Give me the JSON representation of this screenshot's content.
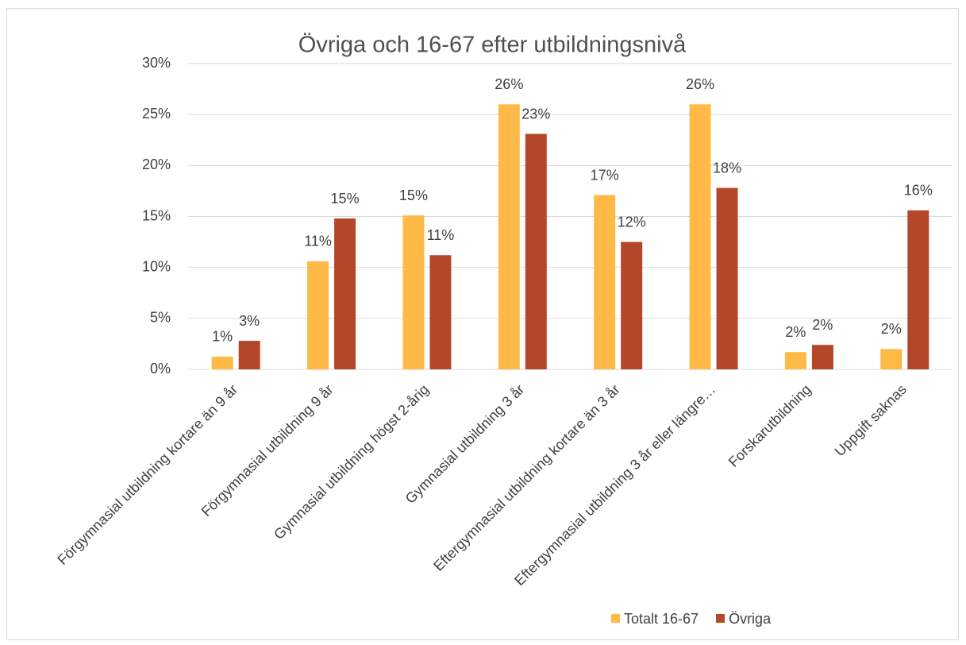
{
  "chart_data": {
    "type": "bar",
    "title": "Övriga och 16-67 efter utbildningsnivå",
    "categories": [
      "Förgymnasial utbildning kortare än 9 år",
      "Förgymnasial utbildning 9 år",
      "Gymnasial utbildning högst 2-årig",
      "Gymnasial utbildning 3 år",
      "Eftergymnasial utbildning kortare än 3 år",
      "Eftergymnasial utbildning 3 år eller längre…",
      "Forskarutbildning",
      "Uppgift saknas"
    ],
    "series": [
      {
        "name": "Totalt 16-67",
        "color": "#ffb946",
        "values": [
          1.25,
          10.6,
          15.1,
          26.0,
          17.1,
          26.0,
          1.7,
          2.0
        ],
        "value_labels": [
          "1%",
          "11%",
          "15%",
          "26%",
          "17%",
          "26%",
          "2%",
          "2%"
        ]
      },
      {
        "name": "Övriga",
        "color": "#b4472a",
        "values": [
          2.8,
          14.8,
          11.2,
          23.1,
          12.5,
          17.8,
          2.4,
          15.6
        ],
        "value_labels": [
          "3%",
          "15%",
          "11%",
          "23%",
          "12%",
          "18%",
          "2%",
          "16%"
        ]
      }
    ],
    "ylim": [
      0,
      30
    ],
    "yticks": [
      {
        "value": 0,
        "label": "0%"
      },
      {
        "value": 5,
        "label": "5%"
      },
      {
        "value": 10,
        "label": "10%"
      },
      {
        "value": 15,
        "label": "15%"
      },
      {
        "value": 20,
        "label": "20%"
      },
      {
        "value": 25,
        "label": "25%"
      },
      {
        "value": 30,
        "label": "30%"
      }
    ],
    "grid": true,
    "legend": "bottom"
  }
}
